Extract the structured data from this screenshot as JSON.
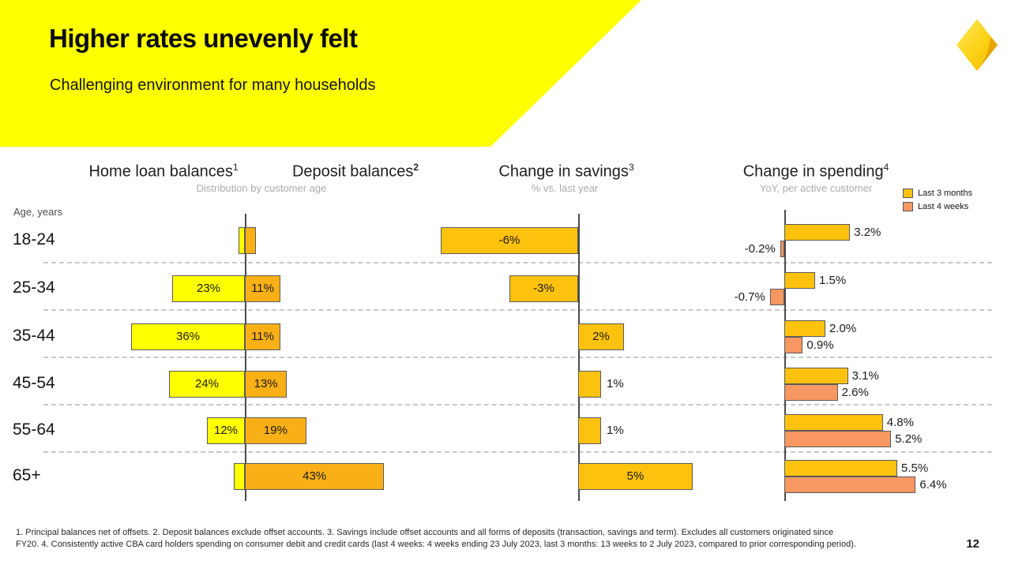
{
  "slide": {
    "title": "Higher rates unevenly felt",
    "subtitle": "Challenging environment for many households",
    "page_number": "12",
    "footnote_line1": "1. Principal balances net of offsets.  2. Deposit balances exclude offset accounts.  3. Savings include offset accounts and all forms of deposits (transaction, savings and term). Excludes all customers originated since",
    "footnote_line2": "FY20.  4. Consistently active CBA card holders spending on consumer debit and credit cards (last 4 weeks: 4 weeks ending 23 July 2023, last 3 months: 13 weeks to 2 July 2023, compared to prior corresponding period)."
  },
  "colors": {
    "banner_yellow": "#FFFF00",
    "bright_yellow": "#FFFF00",
    "amber": "#F9B016",
    "gold": "#FCC20E",
    "salmon": "#F79862",
    "bar_border": "#5A5A5A",
    "axis_gray": "#4A4A4A",
    "divider_gray": "#C8C8C8"
  },
  "chart_data": [
    {
      "id": "homeloan",
      "type": "bar",
      "orientation": "horizontal",
      "direction": "left-of-axis",
      "title": "Home loan balances",
      "title_sup": "1",
      "subtitle": "Distribution by customer age",
      "y_axis_label": "Age, years",
      "unit": "%",
      "xlim": [
        0,
        40
      ],
      "categories": [
        "18-24",
        "25-34",
        "35-44",
        "45-54",
        "55-64",
        "65+"
      ],
      "values": [
        2,
        23,
        36,
        24,
        12,
        3.5
      ],
      "labels": [
        "",
        "23%",
        "36%",
        "24%",
        "12%",
        ""
      ]
    },
    {
      "id": "deposit",
      "type": "bar",
      "orientation": "horizontal",
      "direction": "right-of-axis",
      "title": "Deposit balances",
      "title_sup": "2",
      "subtitle": "Distribution by customer age",
      "unit": "%",
      "xlim": [
        0,
        45
      ],
      "categories": [
        "18-24",
        "25-34",
        "35-44",
        "45-54",
        "55-64",
        "65+"
      ],
      "values": [
        3.3,
        11,
        11,
        13,
        19,
        43
      ],
      "labels": [
        "",
        "11%",
        "11%",
        "13%",
        "19%",
        "43%"
      ]
    },
    {
      "id": "savings",
      "type": "bar",
      "orientation": "horizontal",
      "direction": "signed",
      "title": "Change in savings",
      "title_sup": "3",
      "subtitle": "% vs. last year",
      "unit": "%",
      "xlim": [
        -7,
        6
      ],
      "categories": [
        "18-24",
        "25-34",
        "35-44",
        "45-54",
        "55-64",
        "65+"
      ],
      "values": [
        -6,
        -3,
        2,
        1,
        1,
        5
      ],
      "labels": [
        "-6%",
        "-3%",
        "2%",
        "1%",
        "1%",
        "5%"
      ],
      "label_inside": [
        true,
        true,
        true,
        false,
        false,
        true
      ]
    },
    {
      "id": "spending",
      "type": "bar",
      "orientation": "horizontal",
      "direction": "signed",
      "title": "Change in spending",
      "title_sup": "4",
      "subtitle": "YoY, per active customer",
      "unit": "%",
      "xlim": [
        -1,
        7
      ],
      "legend_position": "top-right",
      "categories": [
        "18-24",
        "25-34",
        "35-44",
        "45-54",
        "55-64",
        "65+"
      ],
      "series": [
        {
          "name": "Last 3 months",
          "values": [
            3.2,
            1.5,
            2.0,
            3.1,
            4.8,
            5.5
          ],
          "labels": [
            "3.2%",
            "1.5%",
            "2.0%",
            "3.1%",
            "4.8%",
            "5.5%"
          ]
        },
        {
          "name": "Last 4 weeks",
          "values": [
            -0.2,
            -0.7,
            0.9,
            2.6,
            5.2,
            6.4
          ],
          "labels": [
            "-0.2%",
            "-0.7%",
            "0.9%",
            "2.6%",
            "5.2%",
            "6.4%"
          ]
        }
      ]
    }
  ]
}
